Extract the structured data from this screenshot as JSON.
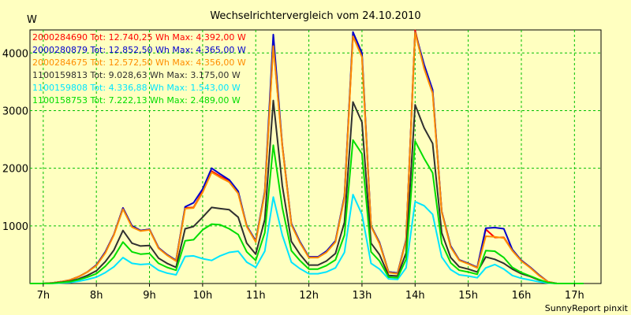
{
  "chart_data": {
    "type": "line",
    "title": "Wechselrichtervergleich vom 24.10.2010",
    "ylabel": "W",
    "xlabel": "",
    "xlim": [
      6.75,
      17.5
    ],
    "ylim": [
      0,
      4400
    ],
    "x_ticks": [
      7,
      8,
      9,
      10,
      11,
      12,
      13,
      14,
      15,
      16,
      17
    ],
    "x_tick_labels": [
      "7h",
      "8h",
      "9h",
      "10h",
      "11h",
      "12h",
      "13h",
      "14h",
      "15h",
      "16h",
      "17h"
    ],
    "y_ticks": [
      1000,
      2000,
      3000,
      4000
    ],
    "y_tick_labels": [
      "1000",
      "2000",
      "3000",
      "4000"
    ],
    "grid": true,
    "legend_position": "top-left",
    "footer": "SunnyReport pinxit",
    "x": [
      6.75,
      7.0,
      7.17,
      7.33,
      7.5,
      7.67,
      7.83,
      8.0,
      8.17,
      8.33,
      8.5,
      8.67,
      8.83,
      9.0,
      9.17,
      9.33,
      9.5,
      9.67,
      9.83,
      10.0,
      10.17,
      10.33,
      10.5,
      10.67,
      10.83,
      11.0,
      11.17,
      11.33,
      11.5,
      11.67,
      11.83,
      12.0,
      12.17,
      12.33,
      12.5,
      12.67,
      12.83,
      13.0,
      13.17,
      13.33,
      13.5,
      13.67,
      13.83,
      14.0,
      14.17,
      14.33,
      14.5,
      14.67,
      14.83,
      15.0,
      15.17,
      15.33,
      15.5,
      15.67,
      15.83,
      16.0,
      16.17,
      16.33,
      16.5,
      16.67,
      16.83,
      17.0,
      17.17
    ],
    "series": [
      {
        "name": "2000284690",
        "label": "2000284690 Tot: 12.740,25 Wh Max: 4.392,00 W",
        "color": "#ff0000",
        "values": [
          0,
          0,
          10,
          30,
          60,
          120,
          200,
          320,
          550,
          850,
          1310,
          1000,
          920,
          940,
          620,
          500,
          400,
          1310,
          1320,
          1600,
          1950,
          1860,
          1780,
          1570,
          1000,
          730,
          1580,
          4150,
          2400,
          1030,
          720,
          460,
          460,
          550,
          730,
          1500,
          4300,
          3950,
          1000,
          700,
          200,
          180,
          750,
          4392,
          3750,
          3330,
          1250,
          640,
          410,
          350,
          280,
          940,
          800,
          800,
          580,
          400,
          280,
          150,
          30,
          0,
          0,
          0,
          0
        ]
      },
      {
        "name": "2000280879",
        "label": "2000280879 Tot: 12.852,50 Wh Max: 4.365,00 W",
        "color": "#0000cc",
        "values": [
          0,
          0,
          10,
          30,
          60,
          120,
          200,
          320,
          550,
          850,
          1310,
          1000,
          920,
          940,
          620,
          500,
          400,
          1330,
          1400,
          1640,
          2000,
          1900,
          1800,
          1600,
          1000,
          740,
          1600,
          4320,
          2400,
          1040,
          730,
          460,
          460,
          560,
          740,
          1520,
          4365,
          4000,
          1000,
          710,
          200,
          180,
          760,
          4360,
          3800,
          3360,
          1250,
          650,
          410,
          350,
          280,
          960,
          970,
          950,
          590,
          400,
          280,
          150,
          30,
          0,
          0,
          0,
          0
        ]
      },
      {
        "name": "2000284675",
        "label": "2000284675 Tot: 12.572,50 Wh Max: 4.356,00 W",
        "color": "#ff8c00",
        "values": [
          0,
          0,
          10,
          30,
          60,
          120,
          200,
          310,
          530,
          840,
          1290,
          980,
          910,
          930,
          610,
          490,
          390,
          1300,
          1310,
          1580,
          1930,
          1840,
          1760,
          1560,
          990,
          720,
          1570,
          4120,
          2380,
          1020,
          710,
          450,
          450,
          540,
          720,
          1490,
          4290,
          3930,
          990,
          690,
          190,
          170,
          740,
          4356,
          3730,
          3300,
          1240,
          630,
          400,
          340,
          270,
          820,
          810,
          790,
          570,
          390,
          270,
          140,
          30,
          0,
          0,
          0,
          0
        ]
      },
      {
        "name": "1100159813",
        "label": "1100159813 Tot: 9.028,63 Wh Max: 3.175,00 W",
        "color": "#303030",
        "values": [
          0,
          0,
          5,
          20,
          40,
          80,
          140,
          220,
          380,
          580,
          920,
          700,
          650,
          660,
          440,
          350,
          280,
          950,
          990,
          1150,
          1320,
          1300,
          1280,
          1150,
          700,
          510,
          1110,
          3175,
          1700,
          730,
          510,
          320,
          320,
          390,
          520,
          1060,
          3150,
          2800,
          700,
          500,
          140,
          130,
          530,
          3100,
          2700,
          2430,
          880,
          450,
          290,
          250,
          200,
          460,
          420,
          350,
          250,
          170,
          120,
          60,
          15,
          0,
          0,
          0,
          0
        ]
      },
      {
        "name": "1100159808",
        "label": "1100159808 Tot: 4.336,88 Wh Max: 1.543,00 W",
        "color": "#00e5ff",
        "values": [
          0,
          0,
          2,
          8,
          18,
          40,
          70,
          110,
          190,
          290,
          450,
          350,
          330,
          340,
          230,
          180,
          150,
          470,
          480,
          430,
          400,
          480,
          540,
          560,
          370,
          280,
          560,
          1500,
          840,
          370,
          260,
          170,
          170,
          200,
          270,
          540,
          1543,
          1200,
          350,
          250,
          80,
          70,
          270,
          1420,
          1350,
          1200,
          460,
          240,
          150,
          130,
          100,
          270,
          330,
          250,
          140,
          90,
          60,
          30,
          8,
          0,
          0,
          0,
          0
        ]
      },
      {
        "name": "1100158753",
        "label": "1100158753 Tot: 7.222,13 Wh Max: 2.489,00 W",
        "color": "#00dd00",
        "values": [
          0,
          0,
          4,
          15,
          30,
          65,
          110,
          170,
          300,
          460,
          720,
          550,
          510,
          520,
          350,
          280,
          230,
          740,
          760,
          930,
          1030,
          1020,
          950,
          850,
          550,
          400,
          880,
          2400,
          1320,
          570,
          400,
          250,
          250,
          310,
          410,
          840,
          2489,
          2250,
          550,
          390,
          110,
          100,
          420,
          2470,
          2170,
          1920,
          700,
          360,
          230,
          200,
          160,
          570,
          560,
          450,
          280,
          190,
          130,
          70,
          15,
          0,
          0,
          0,
          0
        ]
      }
    ]
  }
}
